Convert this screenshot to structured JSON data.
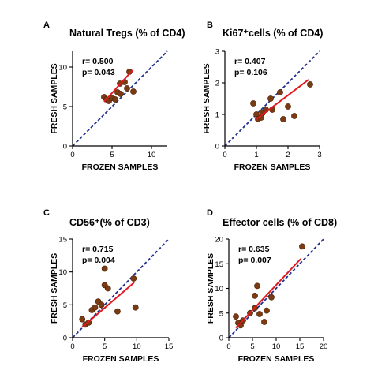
{
  "colors": {
    "identity_line": "#1f2f8f",
    "regression_line": "#e0181f",
    "point_fill": "#7a3b12",
    "point_stroke": "#4a2008",
    "axis": "#000000"
  },
  "chart_data": [
    {
      "type": "scatter",
      "panel_label": "A",
      "title": "Natural Tregs (% of CD4)",
      "xlabel": "FROZEN SAMPLES",
      "ylabel": "FRESH SAMPLES",
      "xlim": [
        0,
        12
      ],
      "ylim": [
        0,
        12
      ],
      "xticks": [
        0,
        5,
        10
      ],
      "yticks": [
        0,
        5,
        10
      ],
      "stats": [
        "r= 0.500",
        "p= 0.043"
      ],
      "points": [
        {
          "x": 4.0,
          "y": 6.2
        },
        {
          "x": 4.3,
          "y": 5.9
        },
        {
          "x": 4.6,
          "y": 5.7
        },
        {
          "x": 5.0,
          "y": 6.1
        },
        {
          "x": 5.4,
          "y": 5.9
        },
        {
          "x": 5.7,
          "y": 6.8
        },
        {
          "x": 6.0,
          "y": 7.9
        },
        {
          "x": 6.1,
          "y": 6.6
        },
        {
          "x": 6.6,
          "y": 8.1
        },
        {
          "x": 6.9,
          "y": 7.3
        },
        {
          "x": 7.2,
          "y": 9.4
        },
        {
          "x": 7.7,
          "y": 6.9
        }
      ],
      "regression": {
        "x": [
          4.0,
          7.6
        ],
        "y": [
          5.6,
          9.6
        ]
      }
    },
    {
      "type": "scatter",
      "panel_label": "B",
      "title": "Ki67⁺cells (% of CD4)",
      "xlabel": "FROZEN SAMPLES",
      "ylabel": "FRESH SAMPLES",
      "xlim": [
        0,
        3
      ],
      "ylim": [
        0,
        3
      ],
      "xticks": [
        0,
        1,
        2,
        3
      ],
      "yticks": [
        0,
        1,
        2,
        3
      ],
      "stats": [
        "r= 0.407",
        "p= 0.106"
      ],
      "points": [
        {
          "x": 0.9,
          "y": 1.35
        },
        {
          "x": 1.0,
          "y": 1.0
        },
        {
          "x": 1.05,
          "y": 0.85
        },
        {
          "x": 1.15,
          "y": 0.9
        },
        {
          "x": 1.2,
          "y": 1.05
        },
        {
          "x": 1.3,
          "y": 1.15
        },
        {
          "x": 1.45,
          "y": 1.5
        },
        {
          "x": 1.5,
          "y": 1.15
        },
        {
          "x": 1.75,
          "y": 1.7
        },
        {
          "x": 1.85,
          "y": 0.85
        },
        {
          "x": 2.0,
          "y": 1.25
        },
        {
          "x": 2.2,
          "y": 0.95
        },
        {
          "x": 2.7,
          "y": 1.95
        }
      ],
      "regression": {
        "x": [
          1.0,
          2.65
        ],
        "y": [
          0.85,
          2.1
        ]
      }
    },
    {
      "type": "scatter",
      "panel_label": "C",
      "title": "CD56⁺(% of CD3)",
      "xlabel": "FROZEN SAMPLES",
      "ylabel": "FRESH SAMPLES",
      "xlim": [
        0,
        15
      ],
      "ylim": [
        0,
        15
      ],
      "xticks": [
        0,
        5,
        10,
        15
      ],
      "yticks": [
        0,
        5,
        10,
        15
      ],
      "stats": [
        "r= 0.715",
        "p= 0.004"
      ],
      "points": [
        {
          "x": 1.5,
          "y": 2.8
        },
        {
          "x": 2.0,
          "y": 2.0
        },
        {
          "x": 2.5,
          "y": 2.3
        },
        {
          "x": 3.0,
          "y": 4.2
        },
        {
          "x": 3.5,
          "y": 4.6
        },
        {
          "x": 4.0,
          "y": 5.5
        },
        {
          "x": 4.5,
          "y": 5.0
        },
        {
          "x": 5.0,
          "y": 10.5
        },
        {
          "x": 5.0,
          "y": 8.0
        },
        {
          "x": 5.5,
          "y": 7.5
        },
        {
          "x": 7.0,
          "y": 4.0
        },
        {
          "x": 9.5,
          "y": 9.0
        },
        {
          "x": 9.8,
          "y": 4.6
        }
      ],
      "regression": {
        "x": [
          1.5,
          9.6
        ],
        "y": [
          1.6,
          8.4
        ]
      }
    },
    {
      "type": "scatter",
      "panel_label": "D",
      "title": "Effector cells (% of CD8)",
      "xlabel": "FROZEN SAMPLES",
      "ylabel": "FRESH SAMPLES",
      "xlim": [
        0,
        20
      ],
      "ylim": [
        0,
        20
      ],
      "xticks": [
        0,
        5,
        10,
        15,
        20
      ],
      "yticks": [
        0,
        5,
        10,
        15,
        20
      ],
      "stats": [
        "r= 0.635",
        "p= 0.007"
      ],
      "points": [
        {
          "x": 1.5,
          "y": 4.3
        },
        {
          "x": 2.0,
          "y": 3.0
        },
        {
          "x": 2.5,
          "y": 2.5
        },
        {
          "x": 3.0,
          "y": 3.5
        },
        {
          "x": 4.5,
          "y": 5.0
        },
        {
          "x": 5.5,
          "y": 6.0
        },
        {
          "x": 5.5,
          "y": 8.5
        },
        {
          "x": 6.0,
          "y": 10.5
        },
        {
          "x": 6.5,
          "y": 4.8
        },
        {
          "x": 7.5,
          "y": 3.2
        },
        {
          "x": 8.0,
          "y": 5.5
        },
        {
          "x": 9.0,
          "y": 8.2
        },
        {
          "x": 15.5,
          "y": 18.5
        }
      ],
      "regression": {
        "x": [
          1.5,
          15.2
        ],
        "y": [
          2.0,
          16.0
        ]
      }
    }
  ]
}
